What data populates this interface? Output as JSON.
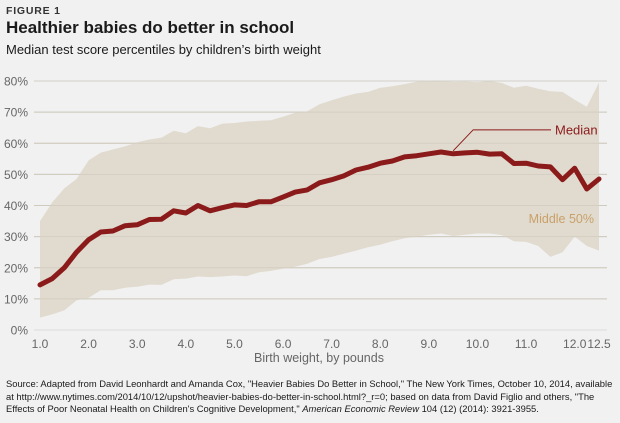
{
  "figure_label": "FIGURE 1",
  "title": "Healthier babies do better in school",
  "subtitle": "Median test score percentiles by children’s birth weight",
  "source": {
    "part1": "Source: Adapted from David Leonhardt and Amanda Cox, \"Heavier Babies Do Better in School,\" The New York Times, October 10, 2014, available at http://www.nytimes.com/2014/10/12/upshot/heavier-babies-do-better-in-school.html?_r=0; based on data from David Figlio and others, \"The Effects of Poor Neonatal Health on Children's Cognitive Development,\" ",
    "journal": "American Economic Review",
    "part2": " 104 (12) (2014): 3921-3955."
  },
  "colors": {
    "median": "#8b1a1a",
    "band": "#e1dbcf",
    "band_label": "#c9a06a",
    "grid": "#cfc9be",
    "axis_text": "#666666",
    "background": "#f1f1f1"
  },
  "chart_data": {
    "type": "area",
    "title": "Healthier babies do better in school",
    "subtitle": "Median test score percentiles by children’s birth weight",
    "xlabel": "Birth weight, by pounds",
    "ylabel": "",
    "xlim": [
      1.0,
      12.5
    ],
    "ylim": [
      0,
      80
    ],
    "grid": true,
    "x_ticks": [
      1.0,
      2.0,
      3.0,
      4.0,
      5.0,
      6.0,
      7.0,
      8.0,
      9.0,
      10.0,
      11.0,
      12.0,
      12.5
    ],
    "x_tick_labels": [
      "1.0",
      "2.0",
      "3.0",
      "4.0",
      "5.0",
      "6.0",
      "7.0",
      "8.0",
      "9.0",
      "10.0",
      "11.0",
      "12.0",
      "12.5"
    ],
    "y_ticks": [
      0,
      10,
      20,
      30,
      40,
      50,
      60,
      70,
      80
    ],
    "y_tick_labels": [
      "0%",
      "10%",
      "20%",
      "30%",
      "40%",
      "50%",
      "60%",
      "70%",
      "80%"
    ],
    "x": [
      1.0,
      1.25,
      1.5,
      1.75,
      2.0,
      2.25,
      2.5,
      2.75,
      3.0,
      3.25,
      3.5,
      3.75,
      4.0,
      4.25,
      4.5,
      4.75,
      5.0,
      5.25,
      5.5,
      5.75,
      6.0,
      6.25,
      6.5,
      6.75,
      7.0,
      7.25,
      7.5,
      7.75,
      8.0,
      8.25,
      8.5,
      8.75,
      9.0,
      9.25,
      9.5,
      9.75,
      10.0,
      10.25,
      10.5,
      10.75,
      11.0,
      11.25,
      11.5,
      11.75,
      12.0,
      12.25,
      12.5
    ],
    "series": [
      {
        "name": "Median",
        "values": [
          14.5,
          16.5,
          20,
          25,
          29,
          31.5,
          31.8,
          33.5,
          33.8,
          35.5,
          35.6,
          38.3,
          37.6,
          40,
          38.3,
          39.3,
          40.2,
          40,
          41.2,
          41.2,
          42.7,
          44.3,
          45,
          47.3,
          48.3,
          49.5,
          51.4,
          52.3,
          53.6,
          54.3,
          55.6,
          56,
          56.6,
          57.2,
          56.6,
          56.9,
          57.1,
          56.5,
          56.6,
          53.5,
          53.6,
          52.7,
          52.4,
          48.3,
          52,
          45.3,
          48.5
        ]
      },
      {
        "name": "Middle 50% (75th percentile)",
        "values": [
          35,
          41,
          45.5,
          48.5,
          54.5,
          57,
          58,
          59,
          60.3,
          61.2,
          61.8,
          64,
          63.2,
          65.5,
          64.8,
          66.3,
          66.5,
          67,
          67.2,
          67.4,
          68.5,
          69.8,
          70.3,
          72.5,
          73.8,
          75,
          76,
          76.5,
          77.8,
          78.3,
          79,
          79.8,
          80,
          80,
          79.7,
          79.8,
          79.6,
          80,
          79.4,
          77.8,
          78.5,
          77.5,
          76.7,
          76.5,
          74,
          71.7,
          79.5
        ]
      },
      {
        "name": "Middle 50% (25th percentile)",
        "values": [
          4,
          5,
          6.3,
          9.5,
          10.3,
          12.8,
          12.8,
          13.6,
          13.9,
          14.6,
          14.5,
          16.3,
          16.5,
          17.2,
          17,
          17.2,
          17.5,
          17.3,
          18.5,
          19,
          19.7,
          20.3,
          21.3,
          22.8,
          23.5,
          24.5,
          25.5,
          26.6,
          27.4,
          28.5,
          29.5,
          30,
          30.6,
          31,
          30.2,
          30.6,
          31,
          31,
          30.5,
          28.5,
          28.3,
          27,
          23.5,
          25,
          30,
          27,
          25.5
        ]
      }
    ],
    "annotations": [
      {
        "text": "Median",
        "points_to_x": 9.5
      },
      {
        "text": "Middle 50%"
      }
    ],
    "legend": "inline-annotations"
  }
}
